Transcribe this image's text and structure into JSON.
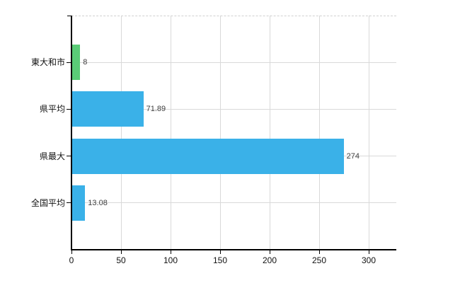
{
  "chart_data": {
    "type": "bar",
    "orientation": "horizontal",
    "title": "",
    "xlabel": "",
    "ylabel": "",
    "categories": [
      "東大和市",
      "県平均",
      "県最大",
      "全国平均"
    ],
    "values": [
      8,
      71.89,
      274,
      13.08
    ],
    "value_labels": [
      "8",
      "71.89",
      "274",
      "13.08"
    ],
    "series": [
      {
        "name": "value",
        "values": [
          8,
          71.89,
          274,
          13.08
        ]
      }
    ],
    "bar_colors": [
      "#5acc77",
      "#3ab1e8",
      "#3ab1e8",
      "#3ab1e8"
    ],
    "x_ticks": [
      0,
      50,
      100,
      150,
      200,
      250,
      300
    ],
    "x_tick_labels": [
      "0",
      "50",
      "100",
      "150",
      "200",
      "250",
      "300"
    ],
    "xlim": [
      0,
      328
    ],
    "grid": true,
    "legend": "none",
    "colors": {
      "background": "#ffffff",
      "gridline": "#d9d9d9",
      "top_border": "#d0d0d0",
      "axis": "#000000",
      "bar_blue": "#3ab1e8",
      "bar_green": "#5acc77",
      "value_text": "#404040",
      "label_text": "#111111"
    }
  }
}
